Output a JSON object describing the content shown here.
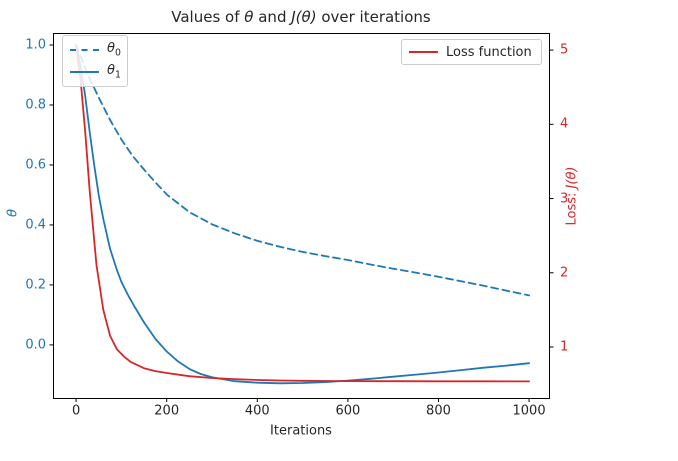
{
  "figure": {
    "colors": {
      "blue": "#1f77b4",
      "red": "#d62728",
      "text": "#262626",
      "legend_border": "#cccccc",
      "spine": "#000000"
    }
  },
  "title": {
    "p1": "Values of ",
    "p2": "θ",
    "p3": " and ",
    "p4": "J(θ)",
    "p5": " over iterations"
  },
  "axes": {
    "x_label": "Iterations",
    "y_left_label": "θ",
    "y_right_label_p1": "Loss: ",
    "y_right_label_p2": "J(θ)"
  },
  "legend_theta": {
    "entry0_base": "θ",
    "entry0_sub": "0",
    "entry1_base": "θ",
    "entry1_sub": "1"
  },
  "legend_loss": {
    "label": "Loss function"
  },
  "chart_data": {
    "type": "line",
    "title": "Values of θ and J(θ) over iterations",
    "xlabel": "Iterations",
    "ylabel_left": "θ",
    "ylabel_right": "Loss: J(θ)",
    "grid": false,
    "legend_left_entries": [
      "θ0 (dashed)",
      "θ1 (solid)"
    ],
    "legend_right_entries": [
      "Loss function"
    ],
    "xlim": [
      -51,
      1044
    ],
    "ylim_left": [
      -0.177,
      1.04
    ],
    "ylim_right": [
      0.313,
      5.23
    ],
    "x_ticks": [
      "0",
      "200",
      "400",
      "600",
      "800",
      "1000"
    ],
    "y_left_ticks": [
      "0.0",
      "0.2",
      "0.4",
      "0.6",
      "0.8",
      "1.0"
    ],
    "y_right_ticks": [
      "1",
      "2",
      "3",
      "4",
      "5"
    ],
    "series": [
      {
        "name": "θ0",
        "axis": "left",
        "color": "#1f77b4",
        "style": "dashed",
        "x": [
          0,
          25,
          50,
          75,
          100,
          125,
          150,
          175,
          200,
          250,
          300,
          350,
          400,
          450,
          500,
          550,
          600,
          650,
          700,
          750,
          800,
          850,
          900,
          950,
          1000
        ],
        "y": [
          1.0,
          0.905,
          0.825,
          0.75,
          0.685,
          0.63,
          0.585,
          0.542,
          0.502,
          0.443,
          0.402,
          0.372,
          0.347,
          0.327,
          0.31,
          0.296,
          0.283,
          0.268,
          0.254,
          0.241,
          0.227,
          0.212,
          0.197,
          0.181,
          0.165
        ]
      },
      {
        "name": "θ1",
        "axis": "left",
        "color": "#1f77b4",
        "style": "solid",
        "x": [
          0,
          10,
          20,
          30,
          40,
          50,
          60,
          75,
          90,
          100,
          115,
          130,
          150,
          175,
          200,
          225,
          250,
          275,
          300,
          350,
          400,
          450,
          500,
          550,
          600,
          650,
          700,
          750,
          800,
          850,
          900,
          950,
          1000
        ],
        "y": [
          1.0,
          0.93,
          0.83,
          0.71,
          0.6,
          0.5,
          0.42,
          0.32,
          0.25,
          0.21,
          0.165,
          0.125,
          0.075,
          0.02,
          -0.022,
          -0.055,
          -0.08,
          -0.097,
          -0.108,
          -0.121,
          -0.126,
          -0.128,
          -0.127,
          -0.124,
          -0.119,
          -0.113,
          -0.106,
          -0.099,
          -0.092,
          -0.084,
          -0.076,
          -0.069,
          -0.061
        ]
      },
      {
        "name": "Loss function",
        "axis": "right",
        "color": "#d62728",
        "style": "solid",
        "x": [
          0,
          10,
          20,
          30,
          45,
          60,
          75,
          90,
          105,
          120,
          150,
          175,
          200,
          250,
          300,
          350,
          400,
          450,
          500,
          550,
          600,
          700,
          800,
          900,
          1000
        ],
        "y": [
          5.05,
          4.6,
          3.9,
          3.1,
          2.1,
          1.5,
          1.15,
          0.97,
          0.875,
          0.8,
          0.715,
          0.675,
          0.65,
          0.607,
          0.583,
          0.567,
          0.556,
          0.549,
          0.545,
          0.542,
          0.54,
          0.539,
          0.538,
          0.5376,
          0.537
        ]
      }
    ]
  }
}
